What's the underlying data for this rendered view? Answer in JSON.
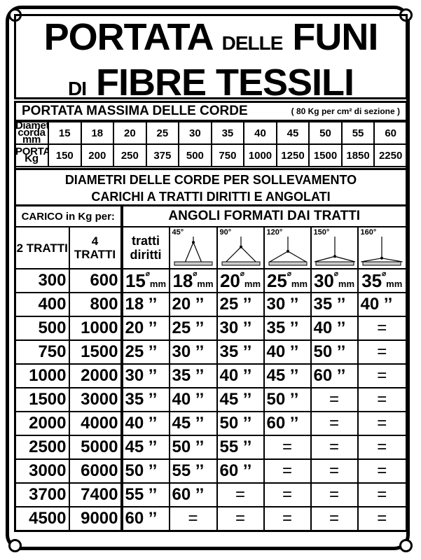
{
  "title": {
    "line1_big1": "PORTATA",
    "line1_small": "DELLE",
    "line1_big2": "FUNI",
    "line2_small": "DI",
    "line2_big": "FIBRE TESSILI"
  },
  "capacity": {
    "heading": "PORTATA MASSIMA DELLE CORDE",
    "note": "( 80 Kg per cm² di sezione )",
    "row1_label": "Diametro corda mm",
    "row2_label": "PORTATA Kg",
    "diameters": [
      "15",
      "18",
      "20",
      "25",
      "30",
      "35",
      "40",
      "45",
      "50",
      "55",
      "60"
    ],
    "loads": [
      "150",
      "200",
      "250",
      "375",
      "500",
      "750",
      "1000",
      "1250",
      "1500",
      "1850",
      "2250"
    ]
  },
  "section": {
    "line1": "DIAMETRI DELLE CORDE PER SOLLEVAMENTO",
    "line2": "CARICHI A TRATTI DIRITTI E ANGOLATI"
  },
  "table": {
    "carico_label": "CARICO in Kg per:",
    "angles_label": "ANGOLI FORMATI DAI TRATTI",
    "col2": "2 TRATTI",
    "col4": "4 TRATTI",
    "straight": "tratti diritti",
    "angles": [
      "45°",
      "90°",
      "120°",
      "150°",
      "160°"
    ],
    "diameter_symbol": "⌀",
    "unit": "mm",
    "first_row": {
      "c2": "300",
      "c4": "600",
      "values": [
        "15",
        "18",
        "20",
        "25",
        "30",
        "35"
      ]
    },
    "rows": [
      {
        "c2": "400",
        "c4": "800",
        "values": [
          "18 ’’",
          "20 ’’",
          "25 ’’",
          "30 ’’",
          "35 ’’",
          "40 ’’"
        ]
      },
      {
        "c2": "500",
        "c4": "1000",
        "values": [
          "20 ’’",
          "25 ’’",
          "30 ’’",
          "35 ’’",
          "40 ’’",
          "="
        ]
      },
      {
        "c2": "750",
        "c4": "1500",
        "values": [
          "25 ’’",
          "30 ’’",
          "35 ’’",
          "40 ’’",
          "50 ’’",
          "="
        ]
      },
      {
        "c2": "1000",
        "c4": "2000",
        "values": [
          "30 ’’",
          "35 ’’",
          "40 ’’",
          "45 ’’",
          "60 ’’",
          "="
        ]
      },
      {
        "c2": "1500",
        "c4": "3000",
        "values": [
          "35 ’’",
          "40 ’’",
          "45 ’’",
          "50 ’’",
          "=",
          "="
        ]
      },
      {
        "c2": "2000",
        "c4": "4000",
        "values": [
          "40 ’’",
          "45 ’’",
          "50 ’’",
          "60 ’’",
          "=",
          "="
        ]
      },
      {
        "c2": "2500",
        "c4": "5000",
        "values": [
          "45 ’’",
          "50 ’’",
          "55 ’’",
          "=",
          "=",
          "="
        ]
      },
      {
        "c2": "3000",
        "c4": "6000",
        "values": [
          "50 ’’",
          "55 ’’",
          "60 ’’",
          "=",
          "=",
          "="
        ]
      },
      {
        "c2": "3700",
        "c4": "7400",
        "values": [
          "55 ’’",
          "60 ’’",
          "=",
          "=",
          "=",
          "="
        ]
      },
      {
        "c2": "4500",
        "c4": "9000",
        "values": [
          "60 ’’",
          "=",
          "=",
          "=",
          "=",
          "="
        ]
      }
    ]
  }
}
